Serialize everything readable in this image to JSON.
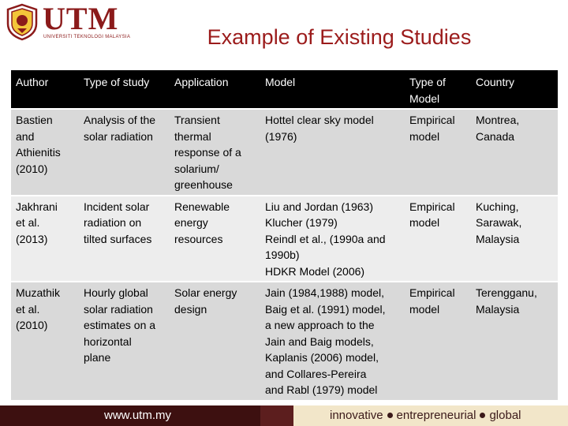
{
  "logo": {
    "text": "UTM",
    "subtitle": "UNIVERSITI TEKNOLOGI MALAYSIA"
  },
  "title": "Example of Existing Studies",
  "table": {
    "headers": [
      "Author",
      "Type of study",
      "Application",
      "Model",
      "Type of Model",
      "Country"
    ],
    "header_lines": {
      "type_of_model": [
        "Type of",
        "Model"
      ]
    },
    "rows": [
      {
        "author": [
          "Bastien",
          "and",
          "Athienitis",
          "(2010)"
        ],
        "type": [
          "Analysis of the",
          "solar radiation"
        ],
        "application": [
          "Transient",
          "thermal",
          "response of a",
          "solarium/",
          "greenhouse"
        ],
        "model": [
          "Hottel clear sky model",
          "(1976)"
        ],
        "type_of_model": [
          "Empirical",
          "model"
        ],
        "country": [
          "Montrea,",
          "Canada"
        ]
      },
      {
        "author": [
          "Jakhrani",
          "et al.",
          "(2013)"
        ],
        "type": [
          "Incident solar",
          "radiation on",
          "tilted surfaces"
        ],
        "application": [
          "Renewable",
          "energy",
          "resources"
        ],
        "model": [
          "Liu and Jordan (1963)",
          "Klucher (1979)",
          "Reindl et al., (1990a and",
          "1990b)",
          "HDKR Model (2006)"
        ],
        "type_of_model": [
          "Empirical",
          "model"
        ],
        "country": [
          "Kuching,",
          "Sarawak,",
          "Malaysia"
        ]
      },
      {
        "author": [
          "Muzathik",
          "et al.",
          "(2010)"
        ],
        "type": [
          "Hourly global",
          "solar radiation",
          "estimates on a",
          "horizontal",
          "plane"
        ],
        "application": [
          "Solar energy",
          "design"
        ],
        "model": [
          "Jain (1984,1988) model,",
          "Baig et al. (1991) model,",
          "a new approach to the",
          "Jain and Baig models,",
          "Kaplanis (2006) model,",
          "and  Collares-Pereira",
          "and Rabl (1979) model"
        ],
        "type_of_model": [
          "Empirical",
          "model"
        ],
        "country": [
          "Terengganu,",
          "Malaysia"
        ]
      }
    ]
  },
  "footer": {
    "url": "www.utm.my",
    "tags": [
      "innovative",
      "entrepreneurial",
      "global"
    ]
  },
  "colors": {
    "brand": "#8b1a1a",
    "header_bg": "#000000",
    "row_dark": "#d9d9d9",
    "row_light": "#ededed"
  }
}
